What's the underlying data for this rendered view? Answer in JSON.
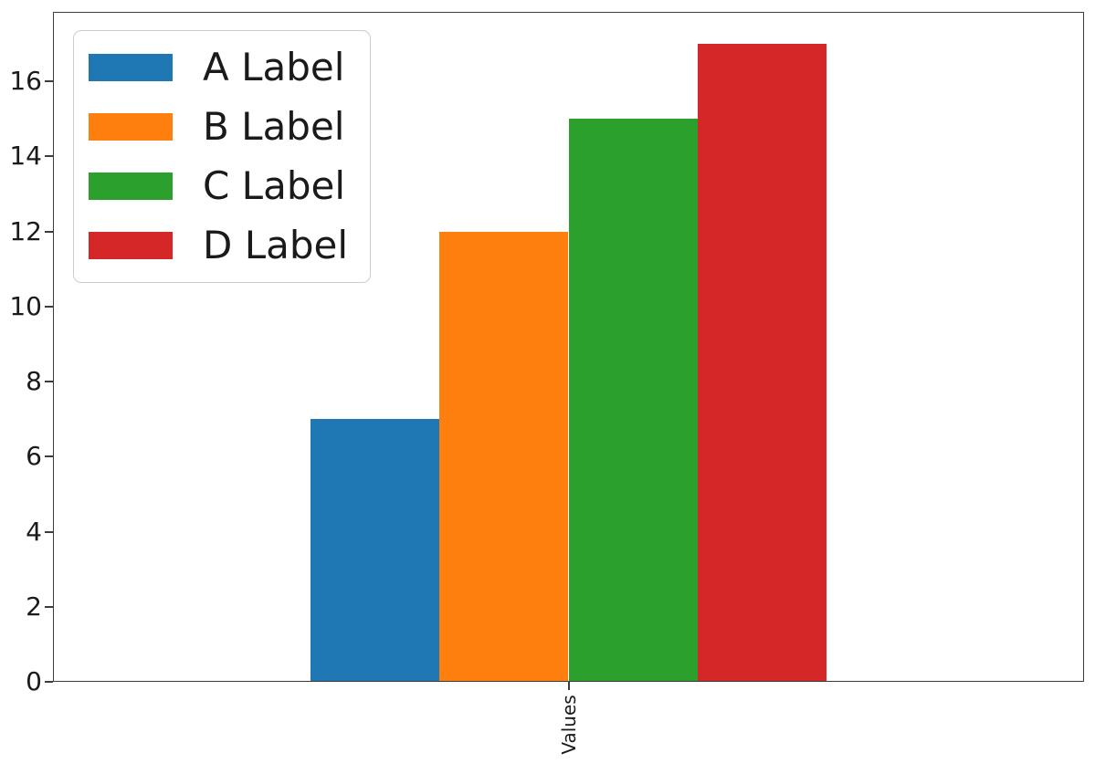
{
  "chart_data": {
    "type": "bar",
    "title": "",
    "categories": [
      "Values"
    ],
    "series": [
      {
        "name": "A Label",
        "color": "#1f77b4",
        "values": [
          7
        ]
      },
      {
        "name": "B Label",
        "color": "#ff7f0e",
        "values": [
          12
        ]
      },
      {
        "name": "C Label",
        "color": "#2ca02c",
        "values": [
          15
        ]
      },
      {
        "name": "D Label",
        "color": "#d62728",
        "values": [
          17
        ]
      }
    ],
    "xlabel": "",
    "ylabel": "",
    "ylim": [
      0,
      17.85
    ],
    "yticks": [
      0,
      2,
      4,
      6,
      8,
      10,
      12,
      14,
      16
    ],
    "grid": false,
    "legend": {
      "position": "upper left",
      "entries": [
        "A Label",
        "B Label",
        "C Label",
        "D Label"
      ]
    },
    "axis_color": "#3c3c3c",
    "text_color": "#1a1a1a",
    "background": "#ffffff"
  }
}
